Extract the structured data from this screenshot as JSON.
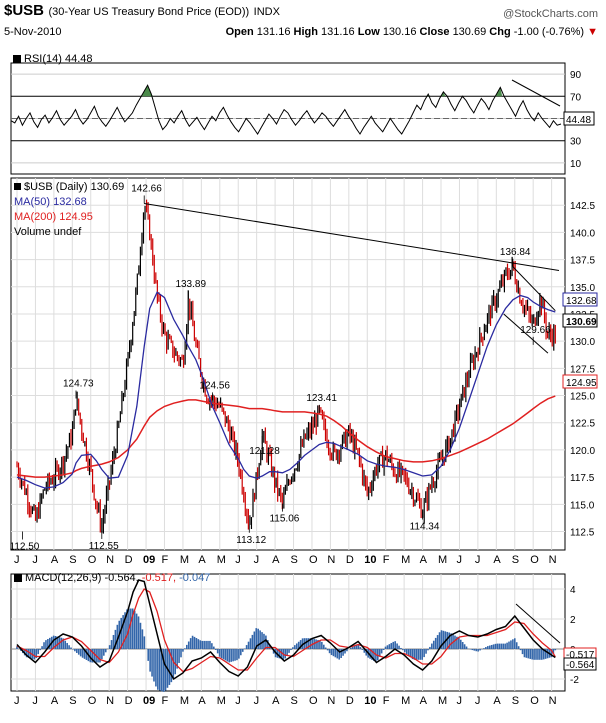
{
  "header": {
    "ticker": "$USB",
    "description": "(30-Year US Treasury Bond Price (EOD))",
    "exchange": "INDX",
    "brand": "@StockCharts.com",
    "date": "5-Nov-2010",
    "open_label": "Open",
    "open": "131.16",
    "high_label": "High",
    "high": "131.16",
    "low_label": "Low",
    "low": "130.16",
    "close_label": "Close",
    "close": "130.69",
    "chg_label": "Chg",
    "chg": "-1.00 (-0.76%)",
    "chg_arrow": "▼",
    "neg_color": "#cc0000"
  },
  "rsi_legend": "RSI(14) 44.48",
  "price_legend": {
    "main": "$USB (Daily) 130.69",
    "ma50": "MA(50) 132.68",
    "ma200": "MA(200) 124.95",
    "volume": "Volume undef"
  },
  "macd_legend": {
    "prefix": "MACD(12,26,9)",
    "macd": "-0.564,",
    "signal": "-0.517,",
    "hist": "-0.047"
  },
  "colors": {
    "ma50": "#2a2aa0",
    "ma200": "#e02020",
    "candle_up": "#000000",
    "candle_down": "#cc0000",
    "macd": "#000000",
    "signal": "#e02020",
    "histogram": "#3366aa",
    "rsi_fill": "#4a8a4a"
  },
  "chart_data": [
    {
      "type": "line",
      "panel": "rsi",
      "name": "RSI(14)",
      "y_ticks": [
        90,
        70,
        50,
        30,
        10
      ],
      "ylim": [
        0,
        100
      ],
      "overbought": 70,
      "oversold": 30,
      "last_value_label": "44.48",
      "x_months": [
        0,
        1,
        2,
        3,
        4,
        5,
        6,
        7,
        8,
        9,
        10,
        11,
        12,
        13,
        14,
        15,
        16,
        17,
        18,
        19,
        20,
        21,
        22,
        23,
        24,
        25,
        26,
        27,
        28,
        29,
        30,
        31,
        32,
        33,
        34,
        35,
        36,
        37,
        38,
        39,
        40,
        41,
        42,
        43,
        44,
        45,
        46,
        47,
        48,
        49,
        50,
        51,
        52,
        53,
        54,
        55,
        56,
        57,
        58,
        59,
        60,
        61,
        62,
        63,
        64,
        65,
        66,
        67,
        68,
        69,
        70,
        71,
        72,
        73,
        74,
        75,
        76,
        77,
        78,
        79,
        80,
        81,
        82,
        83,
        84,
        85,
        86,
        87,
        88,
        89,
        90,
        91,
        92,
        93,
        94,
        95,
        96,
        97,
        98,
        99,
        100,
        101,
        102,
        103,
        104,
        105,
        106,
        107,
        108,
        109,
        110,
        111,
        112,
        113,
        114,
        115,
        116,
        117,
        118,
        119,
        120,
        121,
        122,
        123,
        124,
        125,
        126,
        127,
        128,
        129,
        130,
        131,
        132,
        133,
        134,
        135,
        136,
        137,
        138,
        139,
        140,
        141,
        142,
        143,
        144,
        145
      ],
      "values": [
        48,
        46,
        52,
        44,
        50,
        55,
        47,
        42,
        49,
        53,
        46,
        51,
        57,
        49,
        44,
        48,
        52,
        58,
        50,
        45,
        49,
        55,
        61,
        52,
        47,
        43,
        48,
        54,
        60,
        53,
        47,
        51,
        55,
        62,
        68,
        74,
        80,
        72,
        60,
        48,
        40,
        44,
        50,
        46,
        52,
        57,
        49,
        43,
        47,
        51,
        45,
        40,
        46,
        52,
        48,
        55,
        60,
        53,
        47,
        42,
        38,
        44,
        50,
        46,
        41,
        36,
        42,
        48,
        54,
        50,
        45,
        52,
        58,
        55,
        49,
        44,
        48,
        53,
        57,
        51,
        46,
        50,
        55,
        52,
        47,
        43,
        48,
        53,
        58,
        52,
        47,
        41,
        36,
        42,
        47,
        52,
        46,
        42,
        38,
        44,
        50,
        45,
        40,
        36,
        42,
        48,
        55,
        62,
        58,
        66,
        72,
        64,
        60,
        68,
        74,
        70,
        63,
        57,
        64,
        70,
        66,
        60,
        55,
        62,
        68,
        64,
        58,
        66,
        72,
        78,
        70,
        64,
        58,
        52,
        60,
        66,
        58,
        52,
        48,
        55,
        50,
        46,
        42,
        48,
        44,
        45
      ]
    },
    {
      "type": "line",
      "panel": "price",
      "name": "$USB (Daily)",
      "x_tick_labels": [
        "J",
        "J",
        "A",
        "S",
        "O",
        "N",
        "D",
        "09",
        "F",
        "M",
        "A",
        "M",
        "J",
        "J",
        "A",
        "S",
        "O",
        "N",
        "D",
        "10",
        "F",
        "M",
        "A",
        "M",
        "J",
        "J",
        "A",
        "S",
        "O",
        "N"
      ],
      "y_ticks": [
        112.5,
        115.0,
        117.5,
        120.0,
        122.5,
        125.0,
        127.5,
        130.0,
        132.5,
        135.0,
        137.5,
        140.0,
        142.5
      ],
      "ylim": [
        110.8,
        145.0
      ],
      "xlim": [
        0,
        29.4
      ],
      "annotations": [
        {
          "x": 0.3,
          "y": 112.5,
          "label": "112.50"
        },
        {
          "x": 3.2,
          "y": 124.73,
          "label": "124.73"
        },
        {
          "x": 4.6,
          "y": 112.55,
          "label": "112.55"
        },
        {
          "x": 6.9,
          "y": 142.66,
          "label": "142.66"
        },
        {
          "x": 9.3,
          "y": 133.89,
          "label": "133.89"
        },
        {
          "x": 10.6,
          "y": 124.56,
          "label": "124.56"
        },
        {
          "x": 12.6,
          "y": 113.12,
          "label": "113.12"
        },
        {
          "x": 13.3,
          "y": 121.28,
          "label": "121.28"
        },
        {
          "x": 14.4,
          "y": 115.06,
          "label": "115.06"
        },
        {
          "x": 16.4,
          "y": 123.41,
          "label": "123.41"
        },
        {
          "x": 22.0,
          "y": 114.34,
          "label": "114.34"
        },
        {
          "x": 26.9,
          "y": 136.84,
          "label": "136.84"
        },
        {
          "x": 28.0,
          "y": 129.66,
          "label": "129.66"
        }
      ],
      "close_x": [
        0,
        0.5,
        1,
        1.5,
        2,
        2.5,
        3,
        3.2,
        3.5,
        4,
        4.3,
        4.6,
        5,
        5.5,
        6,
        6.5,
        6.9,
        7.2,
        7.6,
        8,
        8.5,
        9,
        9.3,
        9.7,
        10,
        10.3,
        10.6,
        11,
        11.5,
        12,
        12.3,
        12.6,
        13,
        13.3,
        13.7,
        14,
        14.4,
        14.8,
        15.2,
        15.6,
        16,
        16.4,
        16.8,
        17.2,
        17.6,
        18,
        18.5,
        19,
        19.5,
        20,
        20.5,
        21,
        21.5,
        22,
        22.5,
        23,
        23.5,
        24,
        24.5,
        25,
        25.5,
        26,
        26.5,
        26.9,
        27.3,
        27.7,
        28,
        28.4,
        28.8,
        29.2
      ],
      "close_y": [
        118.5,
        116.0,
        113.5,
        116.5,
        117.5,
        119.0,
        121.5,
        124.73,
        122.0,
        118.0,
        115.0,
        113.0,
        117.0,
        122.0,
        128.0,
        135.0,
        142.66,
        140.0,
        134.0,
        130.5,
        129.0,
        128.0,
        133.89,
        129.5,
        127.0,
        125.0,
        124.56,
        124.0,
        122.0,
        119.0,
        116.0,
        113.12,
        117.5,
        121.28,
        119.0,
        117.0,
        115.06,
        117.5,
        119.0,
        121.0,
        122.0,
        123.41,
        121.0,
        119.5,
        120.5,
        121.5,
        119.5,
        116.0,
        118.5,
        119.5,
        118.0,
        117.5,
        116.0,
        114.34,
        117.0,
        119.0,
        121.0,
        124.0,
        127.0,
        129.5,
        132.0,
        134.0,
        136.0,
        136.84,
        134.0,
        132.5,
        131.5,
        134.0,
        130.5,
        130.69
      ],
      "ma50_y": [
        117.5,
        117.2,
        116.8,
        116.5,
        116.6,
        117.0,
        117.8,
        118.8,
        119.5,
        119.6,
        119.0,
        118.2,
        117.4,
        117.5,
        119.5,
        124.0,
        129.5,
        133.0,
        134.5,
        134.0,
        132.0,
        130.5,
        129.5,
        128.3,
        127.0,
        125.5,
        124.0,
        122.5,
        120.5,
        119.2,
        118.2,
        117.6,
        117.4,
        117.6,
        118.0,
        118.0,
        117.9,
        118.2,
        118.8,
        119.5,
        120.0,
        120.5,
        120.7,
        120.6,
        120.3,
        120.0,
        119.6,
        119.0,
        118.7,
        118.5,
        118.4,
        118.2,
        117.9,
        117.6,
        117.7,
        118.5,
        120.0,
        122.0,
        124.5,
        127.0,
        129.5,
        131.5,
        133.0,
        133.8,
        134.2,
        134.0,
        133.6,
        133.2,
        132.9,
        132.68
      ],
      "ma200_y": [
        117.7,
        117.6,
        117.5,
        117.5,
        117.6,
        117.7,
        117.9,
        118.1,
        118.3,
        118.5,
        118.6,
        118.7,
        118.9,
        119.3,
        120.0,
        121.0,
        122.2,
        123.0,
        123.6,
        124.0,
        124.3,
        124.5,
        124.6,
        124.6,
        124.5,
        124.4,
        124.3,
        124.2,
        124.1,
        124.0,
        123.9,
        123.8,
        123.8,
        123.8,
        123.7,
        123.6,
        123.5,
        123.5,
        123.5,
        123.5,
        123.4,
        123.3,
        123.1,
        122.7,
        122.2,
        121.6,
        120.9,
        120.3,
        119.8,
        119.4,
        119.2,
        119.0,
        118.9,
        118.9,
        119.0,
        119.2,
        119.5,
        119.8,
        120.2,
        120.6,
        121.0,
        121.5,
        122.0,
        122.4,
        122.9,
        123.4,
        123.8,
        124.3,
        124.7,
        124.95
      ],
      "trendlines": [
        {
          "from": [
            6.9,
            142.66
          ],
          "to": [
            29.4,
            136.5
          ]
        },
        {
          "from": [
            26.9,
            136.84
          ],
          "to": [
            29.2,
            132.8
          ]
        },
        {
          "from": [
            26.4,
            132.5
          ],
          "to": [
            28.8,
            128.9
          ]
        }
      ],
      "series": [
        {
          "name": "$USB (Daily)",
          "last": 130.69
        },
        {
          "name": "MA(50)",
          "last": 132.68
        },
        {
          "name": "MA(200)",
          "last": 124.95
        }
      ]
    },
    {
      "type": "line",
      "panel": "macd",
      "name": "MACD(12,26,9)",
      "y_ticks": [
        4,
        2,
        0,
        -2
      ],
      "ylim": [
        -2.8,
        5.0
      ],
      "x": [
        0,
        0.5,
        1,
        1.5,
        2,
        2.5,
        3,
        3.5,
        4,
        4.5,
        5,
        5.5,
        6,
        6.3,
        6.6,
        6.9,
        7.2,
        7.6,
        8,
        8.5,
        9,
        9.5,
        10,
        10.5,
        11,
        11.5,
        12,
        12.5,
        13,
        13.5,
        14,
        14.5,
        15,
        15.5,
        16,
        16.5,
        17,
        17.5,
        18,
        18.5,
        19,
        19.5,
        20,
        20.5,
        21,
        21.5,
        22,
        22.5,
        23,
        23.5,
        24,
        24.5,
        25,
        25.5,
        26,
        26.5,
        27,
        27.5,
        28,
        28.5,
        29,
        29.2
      ],
      "macd": [
        0.3,
        -0.4,
        -0.9,
        -0.2,
        0.6,
        1.0,
        0.8,
        0.2,
        -0.6,
        -1.2,
        -0.8,
        0.8,
        2.5,
        3.8,
        4.6,
        4.5,
        3.0,
        1.0,
        -1.0,
        -2.0,
        -1.6,
        -0.8,
        -0.6,
        -0.2,
        -0.9,
        -1.5,
        -1.8,
        -1.2,
        0.2,
        0.6,
        -0.2,
        -0.8,
        -0.4,
        0.3,
        0.7,
        0.9,
        0.4,
        -0.2,
        0.1,
        0.5,
        -0.2,
        -0.9,
        -0.5,
        0.0,
        -0.4,
        -1.0,
        -1.4,
        -0.8,
        0.2,
        0.9,
        1.2,
        0.9,
        0.8,
        1.0,
        1.3,
        1.5,
        2.2,
        1.4,
        0.6,
        0.0,
        -0.4,
        -0.564
      ],
      "signal": [
        0.2,
        -0.1,
        -0.5,
        -0.5,
        0.1,
        0.6,
        0.8,
        0.5,
        -0.1,
        -0.7,
        -0.9,
        -0.2,
        1.0,
        2.3,
        3.4,
        4.0,
        3.8,
        2.5,
        0.6,
        -0.9,
        -1.5,
        -1.3,
        -0.9,
        -0.5,
        -0.6,
        -1.0,
        -1.4,
        -1.4,
        -0.6,
        0.1,
        0.1,
        -0.4,
        -0.5,
        -0.1,
        0.3,
        0.6,
        0.6,
        0.2,
        0.1,
        0.3,
        0.1,
        -0.4,
        -0.6,
        -0.3,
        -0.3,
        -0.6,
        -1.0,
        -1.0,
        -0.5,
        0.3,
        0.8,
        0.9,
        0.9,
        0.9,
        1.1,
        1.3,
        1.8,
        1.7,
        1.0,
        0.4,
        -0.1,
        -0.517
      ],
      "last_macd_label": "-0.564",
      "last_signal_label": "-0.517",
      "x_tick_labels": [
        "J",
        "J",
        "A",
        "S",
        "O",
        "N",
        "D",
        "09",
        "F",
        "M",
        "A",
        "M",
        "J",
        "J",
        "A",
        "S",
        "O",
        "N",
        "D",
        "10",
        "F",
        "M",
        "A",
        "M",
        "J",
        "J",
        "A",
        "S",
        "O",
        "N"
      ]
    }
  ]
}
